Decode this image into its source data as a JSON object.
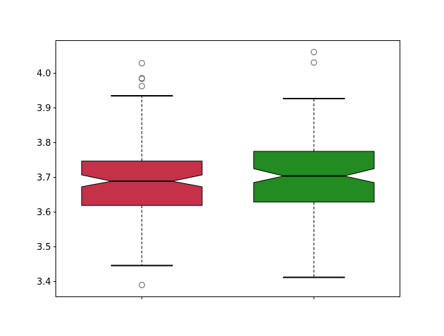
{
  "chart_data": {
    "type": "boxplot",
    "notched": true,
    "title": "",
    "xlabel": "",
    "ylabel": "",
    "ylim": [
      3.356,
      4.094
    ],
    "xlim": [
      0.5,
      2.5
    ],
    "grid": false,
    "yticks": [
      "3.4",
      "3.5",
      "3.6",
      "3.7",
      "3.8",
      "3.9",
      "4.0"
    ],
    "xticks": [
      "",
      ""
    ],
    "boxes": [
      {
        "position": 1,
        "color": "#c43148",
        "q1": 3.619,
        "median": 3.689,
        "q3": 3.747,
        "notch_low": 3.673,
        "notch_high": 3.707,
        "whisker_low": 3.446,
        "whisker_high": 3.935,
        "outliers": [
          4.029,
          3.986,
          3.984,
          3.963,
          3.39
        ]
      },
      {
        "position": 2,
        "color": "#228b22",
        "q1": 3.629,
        "median": 3.704,
        "q3": 3.775,
        "notch_low": 3.685,
        "notch_high": 3.725,
        "whisker_low": 3.412,
        "whisker_high": 3.927,
        "outliers": [
          4.061,
          4.031
        ]
      }
    ]
  }
}
